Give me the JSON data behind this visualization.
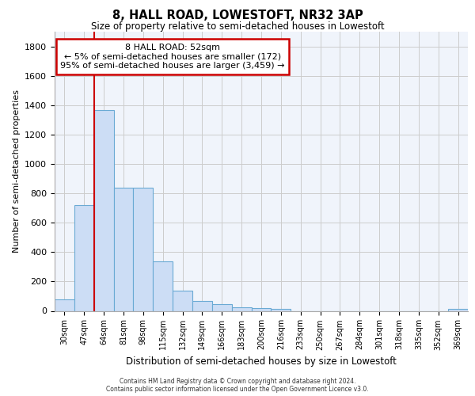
{
  "title_line1": "8, HALL ROAD, LOWESTOFT, NR32 3AP",
  "title_line2": "Size of property relative to semi-detached houses in Lowestoft",
  "xlabel": "Distribution of semi-detached houses by size in Lowestoft",
  "ylabel": "Number of semi-detached properties",
  "categories": [
    "30sqm",
    "47sqm",
    "64sqm",
    "81sqm",
    "98sqm",
    "115sqm",
    "132sqm",
    "149sqm",
    "166sqm",
    "183sqm",
    "200sqm",
    "216sqm",
    "233sqm",
    "250sqm",
    "267sqm",
    "284sqm",
    "301sqm",
    "318sqm",
    "335sqm",
    "352sqm",
    "369sqm"
  ],
  "values": [
    80,
    720,
    1365,
    840,
    840,
    335,
    135,
    70,
    45,
    25,
    20,
    14,
    0,
    0,
    0,
    0,
    0,
    0,
    0,
    0,
    14
  ],
  "bar_color": "#ccddf5",
  "bar_edge_color": "#6aaad4",
  "vline_color": "#cc0000",
  "vline_position": 1.5,
  "annotation_text": "8 HALL ROAD: 52sqm\n← 5% of semi-detached houses are smaller (172)\n95% of semi-detached houses are larger (3,459) →",
  "annotation_box_edgecolor": "#cc0000",
  "ylim": [
    0,
    1900
  ],
  "yticks": [
    0,
    200,
    400,
    600,
    800,
    1000,
    1200,
    1400,
    1600,
    1800
  ],
  "grid_color": "#cccccc",
  "axes_bg_color": "#f0f4fb",
  "footer_line1": "Contains HM Land Registry data © Crown copyright and database right 2024.",
  "footer_line2": "Contains public sector information licensed under the Open Government Licence v3.0."
}
